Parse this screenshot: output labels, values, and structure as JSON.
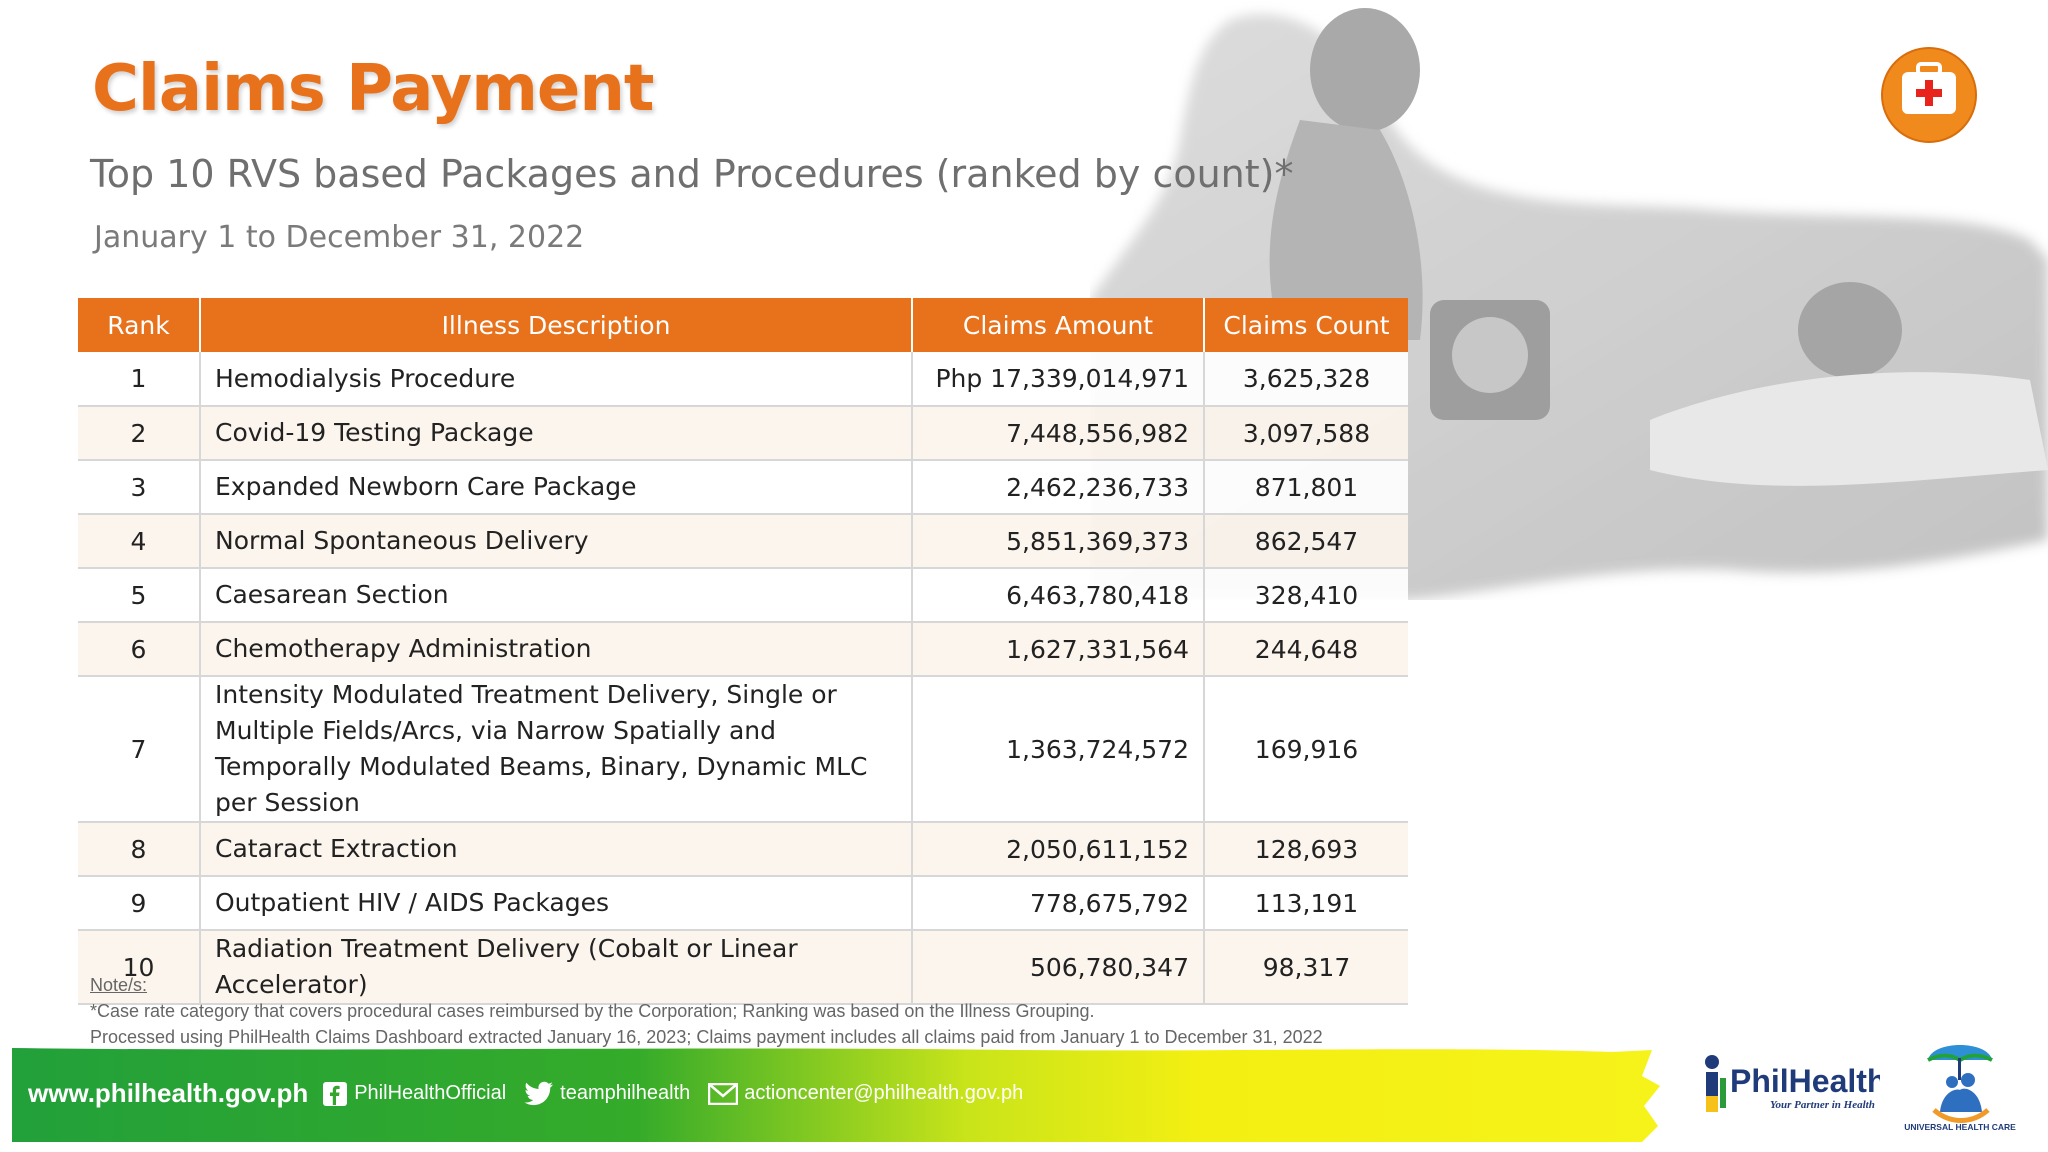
{
  "slide": {
    "title": "Claims Payment",
    "subtitle": "Top 10 RVS based Packages and Procedures (ranked by count)*",
    "date_range": "January 1 to December 31, 2022"
  },
  "table": {
    "headers": {
      "rank": "Rank",
      "description": "Illness Description",
      "amount": "Claims Amount",
      "count": "Claims Count"
    },
    "rows": [
      {
        "rank": "1",
        "description": "Hemodialysis Procedure",
        "amount": "Php 17,339,014,971",
        "count": "3,625,328"
      },
      {
        "rank": "2",
        "description": "Covid-19 Testing Package",
        "amount": "7,448,556,982",
        "count": "3,097,588"
      },
      {
        "rank": "3",
        "description": "Expanded Newborn Care Package",
        "amount": "2,462,236,733",
        "count": "871,801"
      },
      {
        "rank": "4",
        "description": "Normal Spontaneous Delivery",
        "amount": "5,851,369,373",
        "count": "862,547"
      },
      {
        "rank": "5",
        "description": "Caesarean Section",
        "amount": "6,463,780,418",
        "count": "328,410"
      },
      {
        "rank": "6",
        "description": "Chemotherapy Administration",
        "amount": "1,627,331,564",
        "count": "244,648"
      },
      {
        "rank": "7",
        "description": "Intensity Modulated Treatment Delivery, Single or Multiple Fields/Arcs, via Narrow Spatially and Temporally Modulated Beams, Binary, Dynamic MLC per Session",
        "amount": "1,363,724,572",
        "count": "169,916"
      },
      {
        "rank": "8",
        "description": "Cataract Extraction",
        "amount": "2,050,611,152",
        "count": "128,693"
      },
      {
        "rank": "9",
        "description": "Outpatient HIV / AIDS Packages",
        "amount": "778,675,792",
        "count": "113,191"
      },
      {
        "rank": "10",
        "description": "Radiation Treatment Delivery (Cobalt or Linear Accelerator)",
        "amount": "506,780,347",
        "count": "98,317"
      }
    ]
  },
  "notes": {
    "label": "Note/s:",
    "line1": "*Case rate category that covers procedural cases reimbursed by the Corporation; Ranking was based on the Illness Grouping.",
    "line2": "Processed using PhilHealth Claims Dashboard extracted January 16, 2023; Claims payment includes all claims paid from January 1 to December 31, 2022"
  },
  "footer": {
    "website": "www.philhealth.gov.ph",
    "facebook": "PhilHealthOfficial",
    "twitter": "teamphilhealth",
    "email": "actioncenter@philhealth.gov.ph"
  },
  "logos": {
    "philhealth_name": "PhilHealth",
    "philhealth_tagline": "Your Partner in Health",
    "uhc_text": "UNIVERSAL HEALTH CARE"
  },
  "icons": {
    "kit": "first-aid-kit-icon",
    "facebook": "facebook-icon",
    "twitter": "twitter-icon",
    "email": "envelope-icon"
  },
  "colors": {
    "accent": "#e8711c",
    "footer_green": "#2aa52f",
    "footer_yellow": "#f2ee12"
  }
}
